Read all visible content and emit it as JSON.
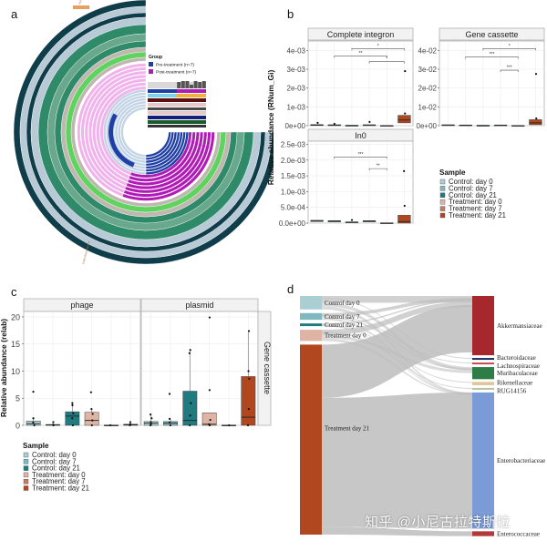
{
  "panels": {
    "a": "a",
    "b": "b",
    "c": "c",
    "d": "d"
  },
  "watermark": "知乎 @小尼古拉特斯拉",
  "chart_data": [
    {
      "panel": "a",
      "type": "circular-heatmap",
      "title": "",
      "legend": {
        "title": "Group",
        "entries": [
          {
            "label": "Pre-treatment (n=7)",
            "color": "#1f3fa6"
          },
          {
            "label": "Post-treatment (n=7)",
            "color": "#b01ab5"
          }
        ],
        "placement": "center-right"
      },
      "ring_colors": [
        "#c2d3e6",
        "#1f3fa6",
        "#f0b3ec",
        "#b01ab5",
        "#3fcf3f",
        "#c0b8b0",
        "#2f8a6a",
        "#6aa88e",
        "#b8cad6",
        "#0f3d4a"
      ],
      "annotations": [
        "Akkermansia",
        "Enterobacteriaceae"
      ]
    },
    {
      "panel": "b",
      "type": "box",
      "ylabel": "Relative abundance (RNum_Gi)",
      "categories": [
        "Control: day 0",
        "Control: day 7",
        "Control: day 21",
        "Treatment: day 0",
        "Treatment: day 7",
        "Treatment: day 21"
      ],
      "facets": [
        {
          "title": "Complete integron",
          "ylim": [
            0,
            0.0045
          ],
          "yticks": [
            "0e+00",
            "1e-03",
            "2e-03",
            "3e-03",
            "4e-03"
          ],
          "ytick_values": [
            0,
            0.001,
            0.002,
            0.003,
            0.004
          ],
          "medians": [
            3e-05,
            3e-05,
            1e-05,
            3e-05,
            0.0,
            0.0003
          ],
          "q1": [
            1e-05,
            1e-05,
            0.0,
            1e-05,
            0.0,
            0.00015
          ],
          "q3": [
            6e-05,
            5e-05,
            2e-05,
            5e-05,
            1e-05,
            0.00055
          ],
          "outliers": [
            [
              0.00015
            ],
            [
              0.0001
            ],
            [],
            [
              0.0002
            ],
            [],
            [
              0.0029,
              0.00065
            ]
          ],
          "significance": [
            {
              "from": 3,
              "to": 6,
              "label": "*",
              "y": 0.0041
            },
            {
              "from": 2,
              "to": 5,
              "label": "**",
              "y": 0.0037
            },
            {
              "from": 4,
              "to": 6,
              "label": "*",
              "y": 0.0034
            }
          ]
        },
        {
          "title": "Gene cassette",
          "ylim": [
            0,
            0.045
          ],
          "yticks": [
            "0e+00",
            "1e-02",
            "2e-02",
            "3e-02",
            "4e-02"
          ],
          "ytick_values": [
            0,
            0.01,
            0.02,
            0.03,
            0.04
          ],
          "medians": [
            0.0003,
            0.0002,
            0.0001,
            0.0002,
            0.0,
            0.0015
          ],
          "q1": [
            0.0001,
            0.0001,
            0.0,
            0.0001,
            0.0,
            0.0005
          ],
          "q3": [
            0.0005,
            0.0004,
            0.0002,
            0.0004,
            0.0001,
            0.0032
          ],
          "outliers": [
            [],
            [],
            [],
            [],
            [],
            [
              0.0275,
              0.0038
            ]
          ],
          "significance": [
            {
              "from": 3,
              "to": 6,
              "label": "*",
              "y": 0.041
            },
            {
              "from": 2,
              "to": 5,
              "label": "***",
              "y": 0.0365
            },
            {
              "from": 4,
              "to": 5,
              "label": "***",
              "y": 0.0295
            }
          ]
        },
        {
          "title": "In0",
          "ylim": [
            0,
            0.0026
          ],
          "yticks": [
            "0.0e+00",
            "5.0e-04",
            "1.0e-03",
            "1.5e-03",
            "2.0e-03",
            "2.5e-03"
          ],
          "ytick_values": [
            0,
            0.0005,
            0.001,
            0.0015,
            0.002,
            0.0025
          ],
          "medians": [
            7e-05,
            6e-05,
            3e-05,
            6e-05,
            0.0,
            5e-05
          ],
          "q1": [
            5e-05,
            4e-05,
            2e-05,
            4e-05,
            0.0,
            0.0
          ],
          "q3": [
            9e-05,
            8e-05,
            4e-05,
            8e-05,
            1e-05,
            0.00025
          ],
          "outliers": [
            [],
            [],
            [
              0.0001
            ],
            [],
            [],
            [
              0.00165,
              0.00055
            ]
          ],
          "significance": [
            {
              "from": 2,
              "to": 5,
              "label": "***",
              "y": 0.0021
            },
            {
              "from": 4,
              "to": 5,
              "label": "**",
              "y": 0.00173
            }
          ]
        }
      ],
      "legend": {
        "title": "Sample",
        "entries": [
          {
            "label": "Control: day 0",
            "color": "#a9cfd3"
          },
          {
            "label": "Control: day 7",
            "color": "#7fb9bf"
          },
          {
            "label": "Control: day 21",
            "color": "#1f7b80"
          },
          {
            "label": "Treatment: day 0",
            "color": "#e0b4a5"
          },
          {
            "label": "Treatment: day 7",
            "color": "#c17a64"
          },
          {
            "label": "Treatment: day 21",
            "color": "#b1471f"
          }
        ],
        "placement": "right"
      }
    },
    {
      "panel": "c",
      "type": "box",
      "ylabel": "Relative abundance (relab)",
      "strip_right": "Gene cassette",
      "ylim": [
        0,
        21
      ],
      "yticks": [
        "0",
        "5",
        "10",
        "15",
        "20"
      ],
      "ytick_values": [
        0,
        5,
        10,
        15,
        20
      ],
      "categories": [
        "Control: day 0",
        "Control: day 7",
        "Control: day 21",
        "Treatment: day 0",
        "Treatment: day 7",
        "Treatment: day 21"
      ],
      "facets": [
        {
          "title": "phage",
          "medians": [
            0.3,
            0.1,
            1.7,
            0.9,
            0.0,
            0.1
          ],
          "q1": [
            0.0,
            0.0,
            0.0,
            0.0,
            0.0,
            0.0
          ],
          "q3": [
            0.8,
            0.15,
            2.5,
            2.4,
            0.05,
            0.2
          ],
          "whisker_high": [
            1.3,
            0.6,
            4.1,
            3.0,
            0.05,
            0.6
          ],
          "points": [
            [
              6.2,
              1.3,
              0.5,
              0.0
            ],
            [
              0.6,
              0.1,
              0.0
            ],
            [
              4.1,
              3.7,
              2.2,
              1.3,
              0.0
            ],
            [
              6.1,
              3.0,
              2.1,
              0.9,
              0.0
            ],
            [
              0.0
            ],
            [
              0.6,
              0.2,
              0.0
            ]
          ]
        },
        {
          "title": "plasmid",
          "medians": [
            0.4,
            0.4,
            0.9,
            0.2,
            0.0,
            1.5
          ],
          "q1": [
            0.0,
            0.0,
            0.0,
            0.0,
            0.0,
            0.0
          ],
          "q3": [
            0.7,
            0.7,
            6.3,
            2.3,
            0.05,
            9.0
          ],
          "whisker_high": [
            2.0,
            1.2,
            13.9,
            2.3,
            0.05,
            17.4
          ],
          "points": [
            [
              2.0,
              1.3,
              0.6,
              0.2,
              0.0
            ],
            [
              5.8,
              1.2,
              0.5,
              0.0
            ],
            [
              13.9,
              13.3,
              4.1,
              1.8,
              0.0
            ],
            [
              19.9,
              6.5,
              1.0,
              0.2,
              0.0
            ],
            [
              0.0
            ],
            [
              17.4,
              10.0,
              8.6,
              3.0,
              0.0
            ]
          ]
        }
      ],
      "legend": {
        "title": "Sample",
        "entries": [
          {
            "label": "Control: day 0",
            "color": "#a9cfd3"
          },
          {
            "label": "Control: day 7",
            "color": "#7fb9bf"
          },
          {
            "label": "Control: day 21",
            "color": "#1f7b80"
          },
          {
            "label": "Treatment: day 0",
            "color": "#e0b4a5"
          },
          {
            "label": "Treatment: day 7",
            "color": "#c17a64"
          },
          {
            "label": "Treatment: day 21",
            "color": "#b1471f"
          }
        ],
        "placement": "bottom-left"
      }
    },
    {
      "panel": "d",
      "type": "sankey",
      "sources": [
        {
          "label": "Control day 0",
          "value": 6,
          "color": "#a9cfd3"
        },
        {
          "label": "Control day 7",
          "value": 3,
          "color": "#7fb9bf"
        },
        {
          "label": "Control day 21",
          "value": 1.2,
          "color": "#1f7b80"
        },
        {
          "label": "Treatment day 0",
          "value": 5,
          "color": "#e0b4a5"
        },
        {
          "label": "Treatment day 21",
          "value": 84.8,
          "color": "#b1471f"
        }
      ],
      "targets": [
        {
          "label": "Akkermansiaceae",
          "value": 27,
          "color": "#a6282c"
        },
        {
          "label": "Bacteroidaceae",
          "value": 0.6,
          "color": "#1b2a5e"
        },
        {
          "label": "Lachnospiraceae",
          "value": 0.6,
          "color": "#c84a4a"
        },
        {
          "label": "Muribaculaceae",
          "value": 5.5,
          "color": "#2e7d46"
        },
        {
          "label": "Rikenellaceae",
          "value": 1.5,
          "color": "#e1c59b"
        },
        {
          "label": "RUG14156",
          "value": 0.6,
          "color": "#b8c2a0"
        },
        {
          "label": "Enterobacteriaceae",
          "value": 62,
          "color": "#7b9bd6"
        },
        {
          "label": "Enterococcaceae",
          "value": 2.2,
          "color": "#b23a3a"
        }
      ],
      "flow_color": "#bdbdbd"
    }
  ]
}
